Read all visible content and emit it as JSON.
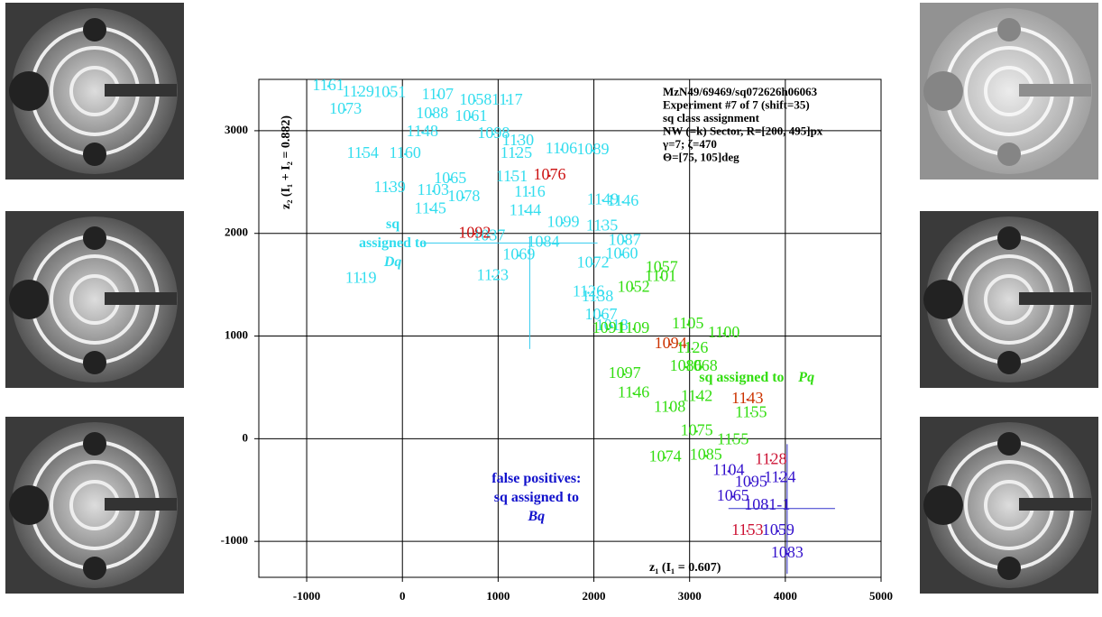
{
  "chart_data": {
    "type": "scatter",
    "xlabel": "z₁ (I₁ = 0.607)",
    "ylabel": "z₂ (I₁ + I₂ = 0.882)",
    "info": [
      "MzN49/69469/sq072626h06063",
      "Experiment #7 of 7 (shift=35)",
      "sq class assignment",
      "NW (=k) Sector, R=[200, 495]px",
      "γ=7; ζ=470",
      "Θ=[75, 105]deg"
    ],
    "annotations": [
      {
        "lines": [
          "sq",
          "assigned to",
          "Dq"
        ],
        "color": "#33ddee",
        "x": -100,
        "y": 1900
      },
      {
        "lines": [
          "sq assigned to",
          "Pq"
        ],
        "color": "#33dd11",
        "x": 3100,
        "y": 590
      },
      {
        "lines": [
          "false positives:",
          "sq assigned to",
          "Bq"
        ],
        "color": "#1111cc",
        "x": 1400,
        "y": -580
      }
    ],
    "xlim": [
      -1500,
      5000
    ],
    "ylim": [
      -1350,
      3500
    ],
    "xticks": [
      -1000,
      0,
      1000,
      2000,
      3000,
      4000,
      5000
    ],
    "yticks": [
      -1000,
      0,
      1000,
      2000,
      3000
    ],
    "grid": true,
    "points": [
      {
        "label": "1161",
        "x": -774,
        "y": 3433,
        "color": "#33ddee"
      },
      {
        "label": "1129",
        "x": -462,
        "y": 3371,
        "color": "#33ddee"
      },
      {
        "label": "1073",
        "x": -594,
        "y": 3204,
        "color": "#33ddee"
      },
      {
        "label": "1051",
        "x": -132,
        "y": 3363,
        "color": "#33ddee"
      },
      {
        "label": "1107",
        "x": 368,
        "y": 3345,
        "color": "#33ddee"
      },
      {
        "label": "1058",
        "x": 764,
        "y": 3292,
        "color": "#33ddee"
      },
      {
        "label": "1117",
        "x": 1094,
        "y": 3292,
        "color": "#33ddee"
      },
      {
        "label": "1088",
        "x": 311,
        "y": 3160,
        "color": "#33ddee"
      },
      {
        "label": "1061",
        "x": 717,
        "y": 3133,
        "color": "#33ddee"
      },
      {
        "label": "1148",
        "x": 208,
        "y": 2983,
        "color": "#33ddee"
      },
      {
        "label": "1098",
        "x": 953,
        "y": 2966,
        "color": "#33ddee"
      },
      {
        "label": "1130",
        "x": 1208,
        "y": 2895,
        "color": "#33ddee"
      },
      {
        "label": "1106",
        "x": 1660,
        "y": 2816,
        "color": "#33ddee"
      },
      {
        "label": "1089",
        "x": 1990,
        "y": 2807,
        "color": "#33ddee"
      },
      {
        "label": "1125",
        "x": 1189,
        "y": 2771,
        "color": "#33ddee"
      },
      {
        "label": "1154",
        "x": -415,
        "y": 2771,
        "color": "#33ddee"
      },
      {
        "label": "1160",
        "x": 28,
        "y": 2771,
        "color": "#33ddee"
      },
      {
        "label": "1065",
        "x": 500,
        "y": 2524,
        "color": "#33ddee"
      },
      {
        "label": "1151",
        "x": 1142,
        "y": 2542,
        "color": "#33ddee"
      },
      {
        "label": "1139",
        "x": -132,
        "y": 2436,
        "color": "#33ddee"
      },
      {
        "label": "1103",
        "x": 321,
        "y": 2410,
        "color": "#33ddee"
      },
      {
        "label": "1078",
        "x": 642,
        "y": 2348,
        "color": "#33ddee"
      },
      {
        "label": "1116",
        "x": 1330,
        "y": 2392,
        "color": "#33ddee"
      },
      {
        "label": "1145",
        "x": 292,
        "y": 2233,
        "color": "#33ddee"
      },
      {
        "label": "1144",
        "x": 1283,
        "y": 2215,
        "color": "#33ddee"
      },
      {
        "label": "1149",
        "x": 2094,
        "y": 2321,
        "color": "#33ddee"
      },
      {
        "label": "1146",
        "x": 2302,
        "y": 2304,
        "color": "#33ddee"
      },
      {
        "label": "1099",
        "x": 1679,
        "y": 2101,
        "color": "#33ddee"
      },
      {
        "label": "1135",
        "x": 2085,
        "y": 2065,
        "color": "#33ddee"
      },
      {
        "label": "1037",
        "x": 906,
        "y": 1968,
        "color": "#33ddee"
      },
      {
        "label": "1084",
        "x": 1472,
        "y": 1906,
        "color": "#33ddee"
      },
      {
        "label": "1087",
        "x": 2321,
        "y": 1924,
        "color": "#33ddee"
      },
      {
        "label": "1060",
        "x": 2292,
        "y": 1792,
        "color": "#33ddee"
      },
      {
        "label": "1069",
        "x": 1217,
        "y": 1783,
        "color": "#33ddee"
      },
      {
        "label": "1119",
        "x": -434,
        "y": 1553,
        "color": "#33ddee"
      },
      {
        "label": "1123",
        "x": 943,
        "y": 1580,
        "color": "#33ddee"
      },
      {
        "label": "1072",
        "x": 1991,
        "y": 1703,
        "color": "#33ddee"
      },
      {
        "label": "1126",
        "x": 1943,
        "y": 1421,
        "color": "#33ddee"
      },
      {
        "label": "1138",
        "x": 2038,
        "y": 1377,
        "color": "#33ddee"
      },
      {
        "label": "1067",
        "x": 2075,
        "y": 1200,
        "color": "#33ddee"
      },
      {
        "label": "1018",
        "x": 2189,
        "y": 1094,
        "color": "#33ddee"
      },
      {
        "label": "1076",
        "x": 1538,
        "y": 2560,
        "color": "#cc1111"
      },
      {
        "label": "1092",
        "x": 755,
        "y": 1995,
        "color": "#cc1111"
      },
      {
        "label": "1057",
        "x": 2708,
        "y": 1659,
        "color": "#33dd11"
      },
      {
        "label": "1101",
        "x": 2698,
        "y": 1571,
        "color": "#33dd11"
      },
      {
        "label": "1052",
        "x": 2415,
        "y": 1465,
        "color": "#33dd11"
      },
      {
        "label": "1105",
        "x": 2981,
        "y": 1112,
        "color": "#33dd11"
      },
      {
        "label": "1100",
        "x": 3358,
        "y": 1024,
        "color": "#33dd11"
      },
      {
        "label": "1109",
        "x": 2415,
        "y": 1068,
        "color": "#33dd11"
      },
      {
        "label": "1091",
        "x": 2151,
        "y": 1068,
        "color": "#33dd11"
      },
      {
        "label": "1094",
        "x": 2802,
        "y": 918,
        "color": "#cc3300"
      },
      {
        "label": "1126",
        "x": 3028,
        "y": 874,
        "color": "#33dd11"
      },
      {
        "label": "1068",
        "x": 3123,
        "y": 697,
        "color": "#33dd11"
      },
      {
        "label": "1086",
        "x": 2962,
        "y": 697,
        "color": "#33dd11"
      },
      {
        "label": "1097",
        "x": 2321,
        "y": 627,
        "color": "#33dd11"
      },
      {
        "label": "1146",
        "x": 2415,
        "y": 441,
        "color": "#33dd11"
      },
      {
        "label": "1142",
        "x": 3075,
        "y": 406,
        "color": "#33dd11"
      },
      {
        "label": "1143",
        "x": 3604,
        "y": 380,
        "color": "#cc3300"
      },
      {
        "label": "1108",
        "x": 2792,
        "y": 300,
        "color": "#33dd11"
      },
      {
        "label": "1155",
        "x": 3642,
        "y": 247,
        "color": "#33dd11"
      },
      {
        "label": "1075",
        "x": 3075,
        "y": 71,
        "color": "#33dd11"
      },
      {
        "label": "1155",
        "x": 3453,
        "y": -18,
        "color": "#33dd11"
      },
      {
        "label": "1074",
        "x": 2745,
        "y": -185,
        "color": "#33dd11"
      },
      {
        "label": "1085",
        "x": 3170,
        "y": -168,
        "color": "#33dd11"
      },
      {
        "label": "1128",
        "x": 3849,
        "y": -212,
        "color": "#cc1133"
      },
      {
        "label": "1104",
        "x": 3406,
        "y": -318,
        "color": "#3311cc"
      },
      {
        "label": "1124",
        "x": 3943,
        "y": -388,
        "color": "#3311cc"
      },
      {
        "label": "1095",
        "x": 3642,
        "y": -432,
        "color": "#3311cc"
      },
      {
        "label": "1065",
        "x": 3453,
        "y": -565,
        "color": "#3311cc"
      },
      {
        "label": "1081-1",
        "x": 3811,
        "y": -653,
        "color": "#3311cc"
      },
      {
        "label": "1153",
        "x": 3604,
        "y": -900,
        "color": "#cc1133"
      },
      {
        "label": "1059",
        "x": 3925,
        "y": -900,
        "color": "#3311cc"
      },
      {
        "label": "1083",
        "x": 4019,
        "y": -1121,
        "color": "#3311cc"
      }
    ],
    "error_bars": [
      {
        "x": 1330,
        "y": 1906,
        "xlow": 208,
        "xhigh": 2038,
        "ylow": 874,
        "yhigh": 1968,
        "color": "#33ccee"
      },
      {
        "x": 4019,
        "y": -680,
        "xlow": 3406,
        "xhigh": 4519,
        "ylow": -1315,
        "yhigh": -53,
        "color": "#3333cc"
      }
    ]
  }
}
